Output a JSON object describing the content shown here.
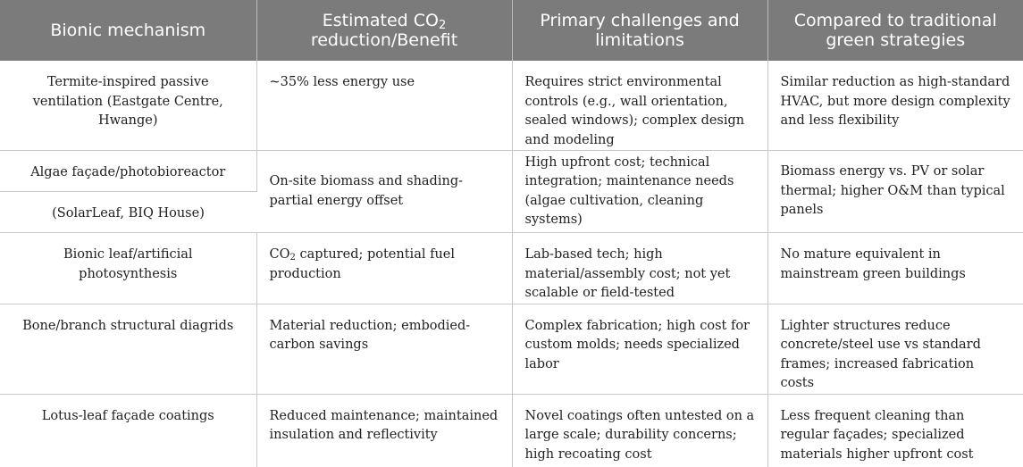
{
  "headers": {
    "mechanism": "Bionic mechanism",
    "benefit_line1": "Estimated CO",
    "benefit_sub": "2",
    "benefit_line2": "reduction/Benefit",
    "challenges": "Primary challenges and limitations",
    "compared": "Compared to traditional green strategies"
  },
  "rows": [
    {
      "mechanism": "Termite-inspired passive ventilation (Eastgate Centre, Hwange)",
      "benefit": "~35% less energy use",
      "challenges": "Requires strict environmental controls (e.g., wall orientation, sealed windows); complex design and modeling",
      "compared": "Similar reduction as high-standard HVAC, but more design complexity and less flexibility"
    },
    {
      "mechanism": "Algae façade/photobioreactor",
      "mechanism_sub": "(SolarLeaf, BIQ House)",
      "benefit": "On-site biomass and shading-partial energy offset",
      "challenges": "High upfront cost; technical integration; maintenance needs (algae cultivation, cleaning systems)",
      "compared": "Biomass energy vs. PV or solar thermal; higher O&M than typical panels"
    },
    {
      "mechanism": "Bionic leaf/artificial photosynthesis",
      "benefit_pre": "CO",
      "benefit_sub": "2",
      "benefit_post": " captured; potential fuel production",
      "challenges": "Lab-based tech; high material/assembly cost; not yet scalable or field-tested",
      "compared": "No mature equivalent in mainstream green buildings"
    },
    {
      "mechanism": "Bone/branch structural diagrids",
      "benefit": "Material reduction; embodied-carbon savings",
      "challenges": "Complex fabrication; high cost for custom molds; needs specialized labor",
      "compared": "Lighter structures reduce concrete/steel use vs standard frames; increased fabrication costs"
    },
    {
      "mechanism": "Lotus-leaf façade coatings",
      "benefit": "Reduced maintenance; maintained insulation and reflectivity",
      "challenges": "Novel coatings often untested on a large scale; durability concerns; high recoating cost",
      "compared": "Less frequent cleaning than regular façades; specialized materials higher upfront cost"
    }
  ]
}
